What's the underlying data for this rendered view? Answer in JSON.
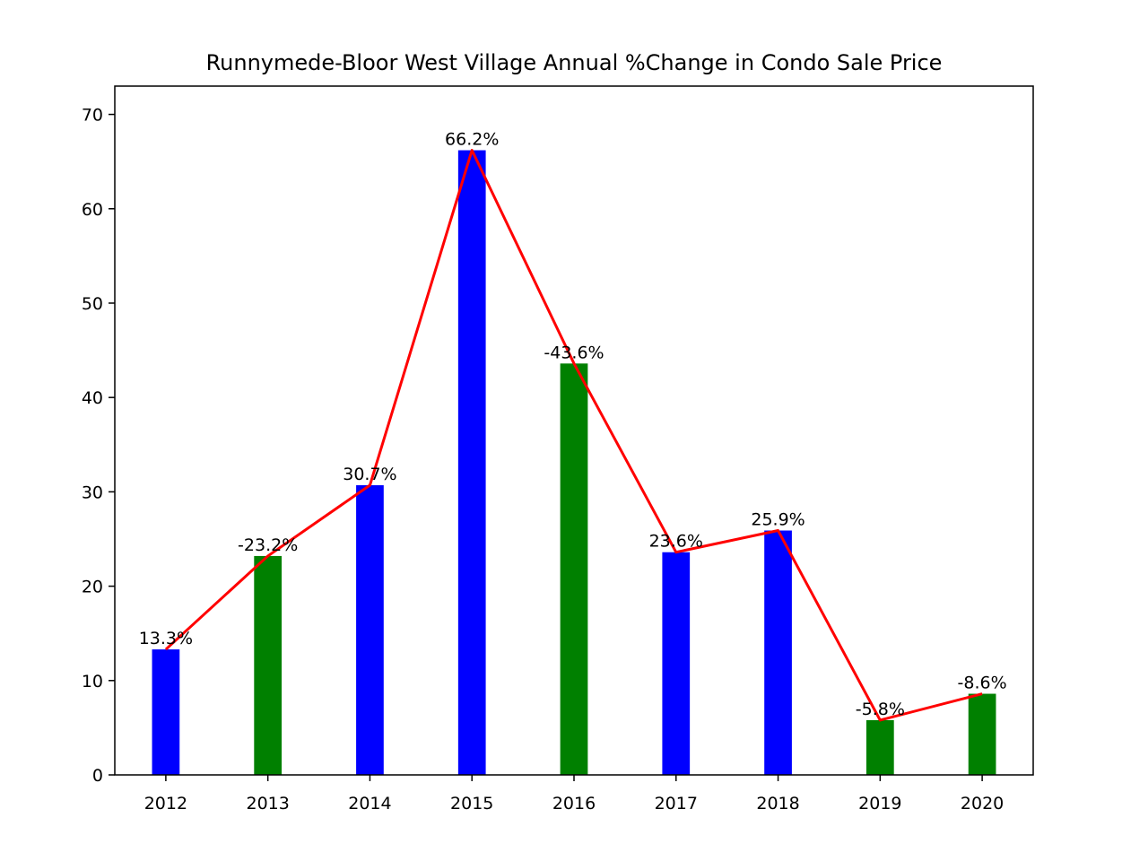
{
  "chart_data": {
    "type": "bar",
    "title": "Runnymede-Bloor West Village Annual %Change in Condo Sale Price",
    "xlabel": "",
    "ylabel": "",
    "categories": [
      "2012",
      "2013",
      "2014",
      "2015",
      "2016",
      "2017",
      "2018",
      "2019",
      "2020"
    ],
    "values": [
      13.3,
      23.2,
      30.7,
      66.2,
      43.6,
      23.6,
      25.9,
      5.8,
      8.6
    ],
    "data_labels": [
      "13.3%",
      "-23.2%",
      "30.7%",
      "66.2%",
      "-43.6%",
      "23.6%",
      "25.9%",
      "-5.8%",
      "-8.6%"
    ],
    "bar_colors": [
      "#0000ff",
      "#008000",
      "#0000ff",
      "#0000ff",
      "#008000",
      "#0000ff",
      "#0000ff",
      "#008000",
      "#008000"
    ],
    "line_overlay": {
      "values": [
        13.3,
        23.2,
        30.7,
        66.2,
        43.6,
        23.6,
        25.9,
        5.8,
        8.6
      ],
      "color": "#ff0000"
    },
    "ylim": [
      0,
      73
    ],
    "yticks": [
      0,
      10,
      20,
      30,
      40,
      50,
      60,
      70
    ],
    "grid": false,
    "legend": "none"
  }
}
